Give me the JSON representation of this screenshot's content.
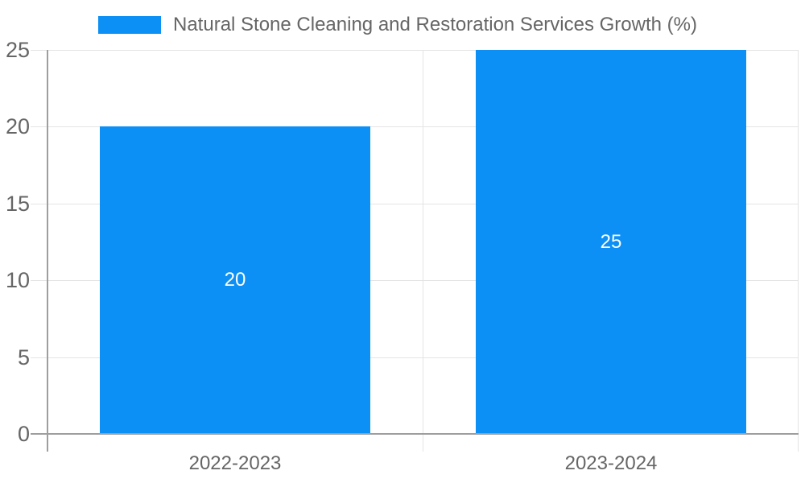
{
  "chart_data": {
    "type": "bar",
    "title": "",
    "series_label": "Natural Stone Cleaning and Restoration Services Growth (%)",
    "categories": [
      "2022-2023",
      "2023-2024"
    ],
    "values": [
      20,
      25
    ],
    "data_labels": [
      "20",
      "25"
    ],
    "xlabel": "",
    "ylabel": "",
    "ylim": [
      0,
      25
    ],
    "y_ticks": [
      0,
      5,
      10,
      15,
      20,
      25
    ],
    "grid": true,
    "legend_position": "top",
    "colors": {
      "bar": "#0d90f5",
      "value_label": "#ffffff",
      "axis_text": "#666666",
      "gridline": "#e4e4e4",
      "axis_line": "#9e9e9e"
    }
  }
}
